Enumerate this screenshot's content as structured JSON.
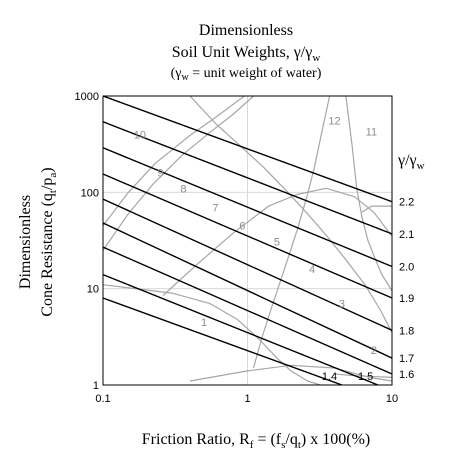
{
  "chart_data": {
    "type": "line",
    "title": "Dimensionless",
    "title_line2": "Soil Unit Weights, γ/γ",
    "title_line2_sub": "w",
    "subtitle_pre": "(γ",
    "subtitle_sub": "w",
    "subtitle_post": " = unit weight of water)",
    "xlabel": {
      "pre": "Friction Ratio, R",
      "sub1": "f",
      "mid1": " = (f",
      "sub2": "s",
      "mid2": "/q",
      "sub3": "t",
      "post": ") x 100(%)"
    },
    "ylabel": {
      "line1": "Dimensionless",
      "pre": "Cone Resistance (q",
      "sub1": "t",
      "mid": "/p",
      "sub2": "a",
      "post": ")"
    },
    "x_scale": "log",
    "y_scale": "log",
    "xlim": [
      0.1,
      10
    ],
    "ylim": [
      1,
      1000
    ],
    "x_ticks": [
      "0.1",
      "1",
      "10"
    ],
    "y_ticks": [
      "1",
      "10",
      "100",
      "1000"
    ],
    "grid": true,
    "series_header_pre": "γ/γ",
    "series_header_sub": "w",
    "series": [
      {
        "name": "2.2",
        "points": [
          [
            0.1,
            1000
          ],
          [
            10,
            80
          ]
        ]
      },
      {
        "name": "2.1",
        "points": [
          [
            0.1,
            540
          ],
          [
            10,
            37
          ]
        ]
      },
      {
        "name": "2.0",
        "points": [
          [
            0.1,
            290
          ],
          [
            10,
            17
          ]
        ]
      },
      {
        "name": "1.9",
        "points": [
          [
            0.1,
            155
          ],
          [
            10,
            8
          ]
        ]
      },
      {
        "name": "1.8",
        "points": [
          [
            0.1,
            85
          ],
          [
            10,
            3.7
          ]
        ]
      },
      {
        "name": "1.7",
        "points": [
          [
            0.1,
            48
          ],
          [
            10,
            1.9
          ]
        ]
      },
      {
        "name": "1.6",
        "points": [
          [
            0.1,
            27
          ],
          [
            10,
            1.3
          ]
        ]
      },
      {
        "name": "1.5",
        "points": [
          [
            0.1,
            14
          ],
          [
            8,
            1
          ]
        ]
      },
      {
        "name": "1.4",
        "points": [
          [
            0.1,
            8
          ],
          [
            4.5,
            1
          ]
        ]
      }
    ],
    "zone_labels": [
      "1",
      "2",
      "3",
      "4",
      "5",
      "6",
      "7",
      "8",
      "9",
      "10",
      "11",
      "12"
    ],
    "zone_label_positions": [
      [
        0.5,
        4.5
      ],
      [
        7.5,
        2.3
      ],
      [
        4.5,
        7
      ],
      [
        2.8,
        16
      ],
      [
        1.6,
        31
      ],
      [
        0.92,
        45
      ],
      [
        0.6,
        70
      ],
      [
        0.36,
        110
      ],
      [
        0.25,
        160
      ],
      [
        0.18,
        400
      ],
      [
        7.2,
        430
      ],
      [
        4.0,
        560
      ]
    ],
    "zone_boundaries": [
      {
        "points": [
          [
            0.1,
            11
          ],
          [
            0.3,
            9
          ],
          [
            0.55,
            7
          ],
          [
            0.85,
            4.8
          ],
          [
            1.2,
            3
          ],
          [
            1.6,
            1.9
          ],
          [
            2.0,
            1.4
          ],
          [
            2.6,
            1.1
          ],
          [
            3.2,
            1.0
          ]
        ]
      },
      {
        "points": [
          [
            1.1,
            1.5
          ],
          [
            1.25,
            3
          ],
          [
            1.45,
            6
          ],
          [
            1.75,
            14
          ],
          [
            2.2,
            40
          ],
          [
            2.6,
            95
          ],
          [
            2.9,
            180
          ],
          [
            3.3,
            450
          ],
          [
            3.7,
            1000
          ]
        ]
      },
      {
        "points": [
          [
            0.1,
            25
          ],
          [
            0.15,
            60
          ],
          [
            0.22,
            120
          ],
          [
            0.35,
            240
          ],
          [
            0.55,
            420
          ],
          [
            0.8,
            650
          ],
          [
            1.1,
            1000
          ]
        ]
      },
      {
        "points": [
          [
            0.1,
            45
          ],
          [
            0.15,
            100
          ],
          [
            0.23,
            200
          ],
          [
            0.4,
            390
          ],
          [
            0.62,
            620
          ],
          [
            0.95,
            1000
          ]
        ]
      },
      {
        "points": [
          [
            0.26,
            8.5
          ],
          [
            0.45,
            18
          ],
          [
            0.8,
            38
          ],
          [
            1.4,
            72
          ],
          [
            2.2,
            95
          ],
          [
            3.5,
            110
          ],
          [
            5.5,
            90
          ],
          [
            7.5,
            62
          ],
          [
            10,
            35
          ]
        ]
      },
      {
        "points": [
          [
            0.4,
            1000
          ],
          [
            0.6,
            520
          ],
          [
            0.9,
            300
          ],
          [
            1.3,
            180
          ],
          [
            1.9,
            100
          ],
          [
            2.6,
            60
          ],
          [
            3.5,
            36
          ],
          [
            4.8,
            20
          ],
          [
            6.5,
            11
          ],
          [
            8.3,
            6
          ],
          [
            10,
            3.5
          ]
        ]
      },
      {
        "points": [
          [
            4.8,
            1000
          ],
          [
            5.3,
            300
          ],
          [
            5.7,
            110
          ],
          [
            6.2,
            55
          ],
          [
            6.8,
            32
          ],
          [
            7.5,
            22
          ],
          [
            8.5,
            14
          ],
          [
            10,
            9.5
          ]
        ]
      },
      {
        "points": [
          [
            6.2,
            62
          ],
          [
            7.2,
            72
          ],
          [
            10,
            72
          ]
        ]
      },
      {
        "points": [
          [
            4.0,
            1.3
          ],
          [
            5.5,
            1.25
          ],
          [
            10,
            1.2
          ]
        ]
      },
      {
        "points": [
          [
            0.4,
            1.1
          ],
          [
            1.0,
            1.4
          ],
          [
            2.0,
            1.6
          ],
          [
            4.0,
            1.5
          ],
          [
            7.0,
            1.2
          ],
          [
            10,
            1.1
          ]
        ]
      }
    ]
  }
}
